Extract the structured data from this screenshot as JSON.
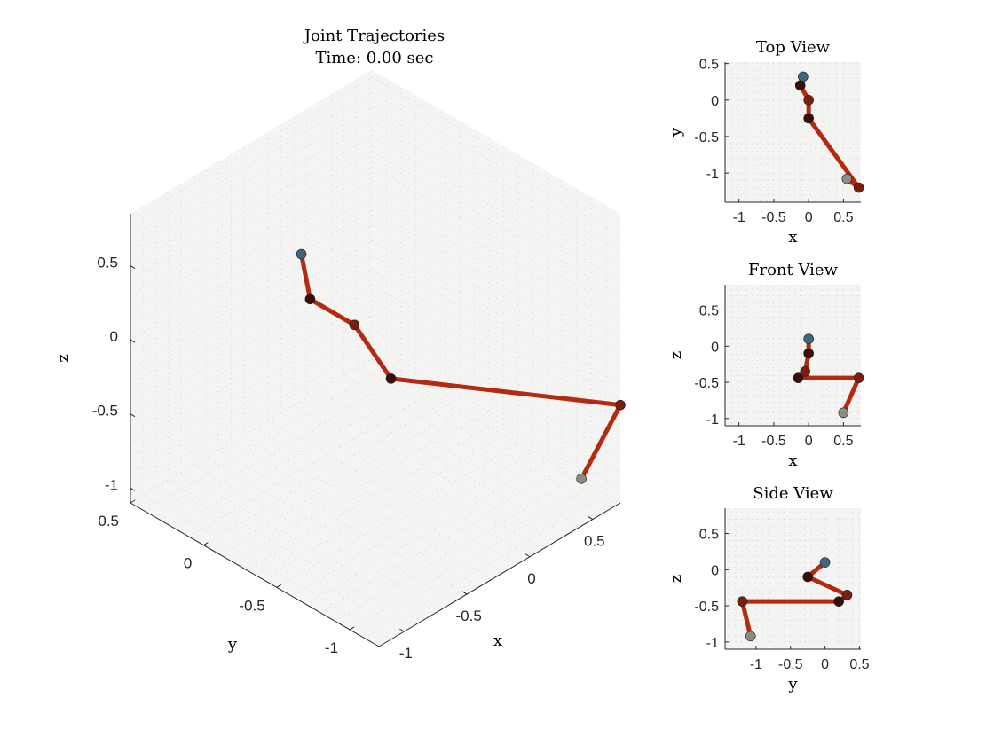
{
  "figure": {
    "main_title": "Joint Trajectories",
    "time_label": "Time: 0.00 sec"
  },
  "chart_data": [
    {
      "type": "line",
      "view": "3d",
      "title": "Joint Trajectories",
      "subtitle": "Time: 0.00 sec",
      "xlabel": "x",
      "ylabel": "y",
      "zlabel": "z",
      "xlim": [
        -1.2,
        0.72
      ],
      "ylim": [
        -1.2,
        0.5
      ],
      "zlim": [
        -1.1,
        0.85
      ],
      "xticks": [
        "-1",
        "-0.5",
        "0",
        "0.5"
      ],
      "yticks": [
        "-1",
        "-0.5",
        "0",
        "0.5"
      ],
      "zticks": [
        "-1",
        "-0.5",
        "0",
        "0.5"
      ],
      "grid": true,
      "points": [
        {
          "x": -0.05,
          "y": 0.32,
          "z": 0.1
        },
        {
          "x": -0.12,
          "y": 0.2,
          "z": -0.1
        },
        {
          "x": 0.0,
          "y": 0.0,
          "z": -0.22
        },
        {
          "x": 0.0,
          "y": -0.25,
          "z": -0.44
        },
        {
          "x": 0.72,
          "y": -1.2,
          "z": -0.44
        },
        {
          "x": 0.55,
          "y": -1.08,
          "z": -0.92
        }
      ]
    },
    {
      "type": "line",
      "title": "Top View",
      "xlabel": "x",
      "ylabel": "y",
      "xlim": [
        -1.2,
        0.75
      ],
      "ylim": [
        -1.4,
        0.52
      ],
      "xticks": [
        "-1",
        "-0.5",
        "0",
        "0.5"
      ],
      "yticks": [
        "-1",
        "-0.5",
        "0",
        "0.5"
      ],
      "grid": true,
      "points": [
        {
          "x": -0.08,
          "y": 0.32
        },
        {
          "x": -0.12,
          "y": 0.2
        },
        {
          "x": 0.0,
          "y": 0.0
        },
        {
          "x": 0.0,
          "y": -0.25
        },
        {
          "x": 0.72,
          "y": -1.2
        },
        {
          "x": 0.55,
          "y": -1.08
        }
      ]
    },
    {
      "type": "line",
      "title": "Front View",
      "xlabel": "x",
      "ylabel": "z",
      "xlim": [
        -1.2,
        0.75
      ],
      "ylim": [
        -1.1,
        0.85
      ],
      "xticks": [
        "-1",
        "-0.5",
        "0",
        "0.5"
      ],
      "yticks": [
        "-1",
        "-0.5",
        "0",
        "0.5"
      ],
      "grid": true,
      "points": [
        {
          "x": 0.0,
          "y": 0.1
        },
        {
          "x": 0.0,
          "y": -0.1
        },
        {
          "x": -0.05,
          "y": -0.35
        },
        {
          "x": -0.15,
          "y": -0.44
        },
        {
          "x": 0.72,
          "y": -0.44
        },
        {
          "x": 0.5,
          "y": -0.92
        }
      ]
    },
    {
      "type": "line",
      "title": "Side View",
      "xlabel": "y",
      "ylabel": "z",
      "xlim": [
        -1.45,
        0.52
      ],
      "ylim": [
        -1.1,
        0.85
      ],
      "xticks": [
        "-1",
        "-0.5",
        "0",
        "0.5"
      ],
      "yticks": [
        "-1",
        "-0.5",
        "0",
        "0.5"
      ],
      "grid": true,
      "points": [
        {
          "x": 0.0,
          "y": 0.1
        },
        {
          "x": -0.25,
          "y": -0.1
        },
        {
          "x": 0.32,
          "y": -0.35
        },
        {
          "x": 0.2,
          "y": -0.44
        },
        {
          "x": -1.2,
          "y": -0.44
        },
        {
          "x": -1.08,
          "y": -0.92
        }
      ]
    }
  ],
  "colors": {
    "link": "#b5290f",
    "node_start": "#3d6680",
    "node_mid": "#7a1e10",
    "node_dark": "#3a0d08",
    "node_end": "#8c8c82",
    "panel_bg": "#f4f4f2",
    "axis": "#262626"
  }
}
